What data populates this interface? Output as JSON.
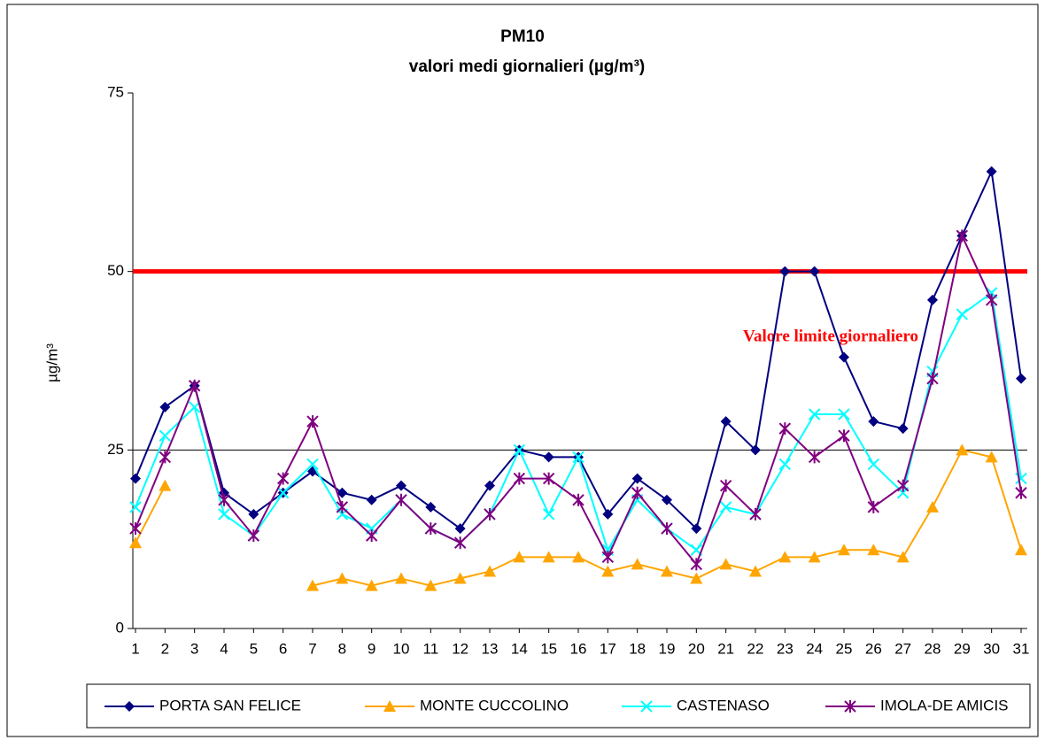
{
  "chart_data": {
    "type": "line",
    "title": "PM10",
    "subtitle": "valori medi giornalieri (µg/m³)",
    "y_label": "µg/m³",
    "categories": [
      "1",
      "2",
      "3",
      "4",
      "5",
      "6",
      "7",
      "8",
      "9",
      "10",
      "11",
      "12",
      "13",
      "14",
      "15",
      "16",
      "17",
      "18",
      "19",
      "20",
      "21",
      "22",
      "23",
      "24",
      "25",
      "26",
      "27",
      "28",
      "29",
      "30",
      "31"
    ],
    "series": [
      {
        "name": "PORTA SAN FELICE",
        "color": "#000080",
        "marker": "diamond",
        "values": [
          21,
          31,
          34,
          19,
          16,
          19,
          22,
          19,
          18,
          20,
          17,
          14,
          20,
          25,
          24,
          24,
          16,
          21,
          18,
          14,
          29,
          25,
          50,
          50,
          38,
          29,
          28,
          46,
          55,
          64,
          35
        ]
      },
      {
        "name": "MONTE CUCCOLINO",
        "color": "#ffa500",
        "marker": "triangle",
        "values": [
          12,
          20,
          null,
          null,
          null,
          null,
          6,
          7,
          6,
          7,
          6,
          7,
          8,
          10,
          10,
          10,
          8,
          9,
          8,
          7,
          9,
          8,
          10,
          10,
          11,
          11,
          10,
          17,
          25,
          24,
          11
        ]
      },
      {
        "name": "CASTENASO",
        "color": "#00ffff",
        "marker": "x",
        "values": [
          17,
          27,
          31,
          16,
          13,
          19,
          23,
          16,
          14,
          18,
          14,
          12,
          16,
          25,
          16,
          24,
          11,
          18,
          14,
          11,
          17,
          16,
          23,
          30,
          30,
          23,
          19,
          36,
          44,
          47,
          21
        ]
      },
      {
        "name": "IMOLA-DE AMICIS",
        "color": "#800080",
        "marker": "star",
        "values": [
          14,
          24,
          34,
          18,
          13,
          21,
          29,
          17,
          13,
          18,
          14,
          12,
          16,
          21,
          21,
          18,
          10,
          19,
          14,
          9,
          20,
          16,
          28,
          24,
          27,
          17,
          20,
          35,
          55,
          46,
          19
        ]
      }
    ],
    "reference_lines": [
      {
        "value": 50,
        "color": "#ff0000",
        "label": "Valore limite giornaliero"
      }
    ],
    "ylim": [
      0,
      75
    ],
    "yticks": [
      0,
      25,
      50,
      75
    ],
    "grid": true,
    "legend": "bottom"
  }
}
